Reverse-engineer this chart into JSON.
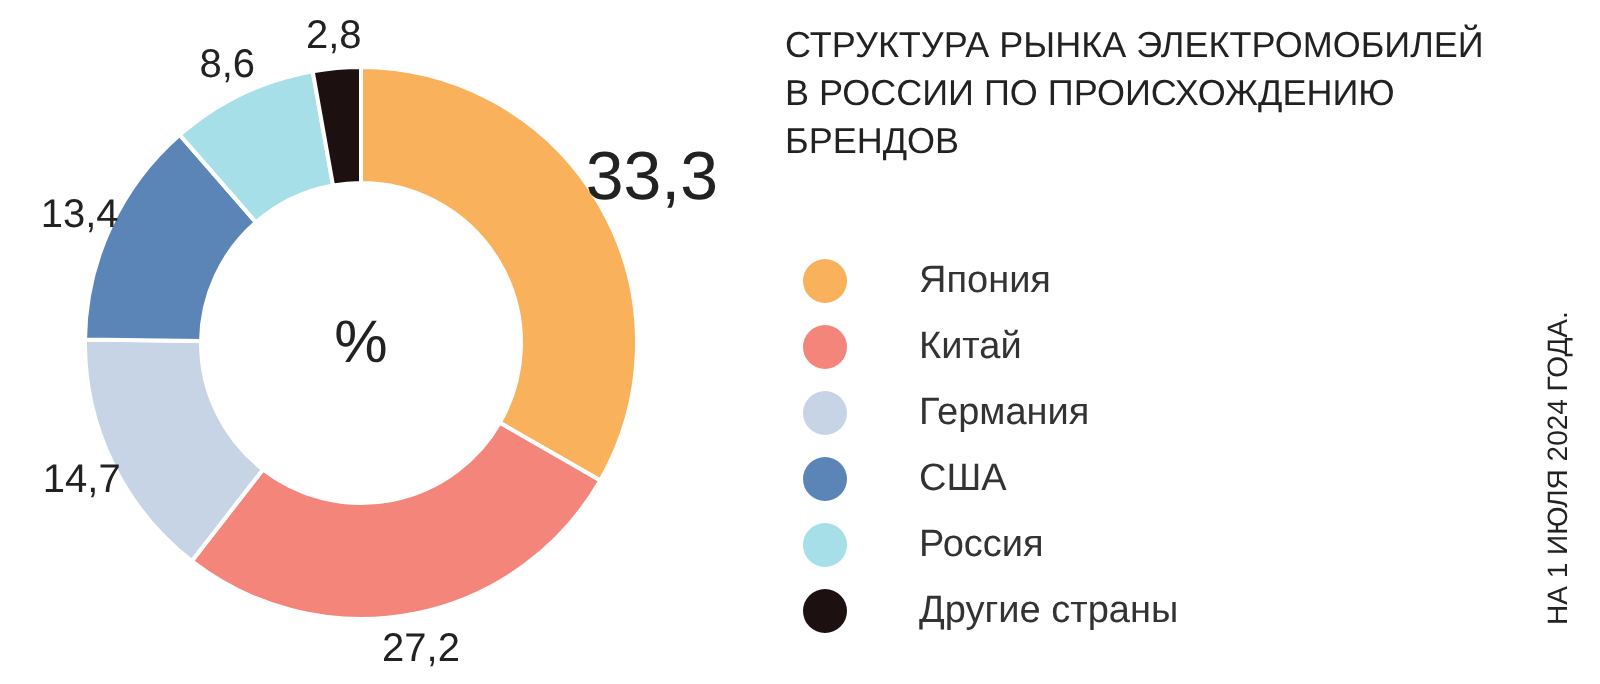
{
  "chart_data": {
    "type": "donut",
    "title": "СТРУКТУРА РЫНКА ЭЛЕКТРОМОБИЛЕЙ\nВ РОССИИ ПО ПРОИСХОЖДЕНИЮ\nБРЕНДОВ",
    "categories": [
      "Япония",
      "Китай",
      "Германия",
      "США",
      "Россия",
      "Другие страны"
    ],
    "values": [
      33.3,
      27.2,
      14.7,
      13.4,
      8.6,
      2.8
    ],
    "colors": [
      "#f9b15c",
      "#f4857b",
      "#c6d4e6",
      "#5b85b6",
      "#a6dfe7",
      "#1c1010"
    ],
    "value_labels": [
      "33,3",
      "27,2",
      "14,7",
      "13,4",
      "8,6",
      "2,8"
    ],
    "legend": "right",
    "annotations": [
      "%",
      "НА 1 ИЮЛЯ 2024 ГОДА."
    ]
  }
}
